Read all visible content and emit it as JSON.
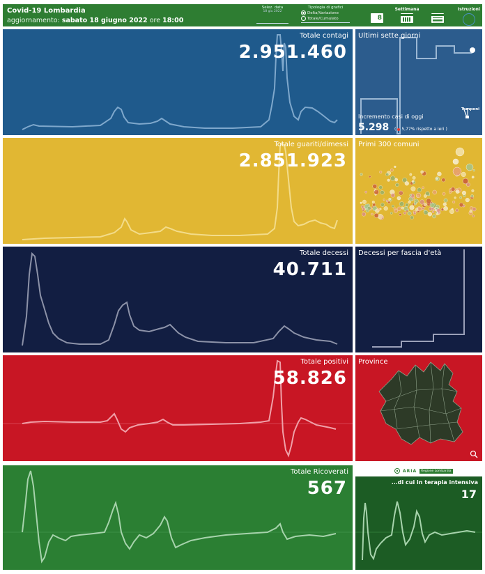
{
  "header": {
    "title": "Covid-19 Lombardia",
    "update_prefix": "aggiornamento:",
    "update_date": "sabato 18 giugno 2022",
    "update_mid": "ore",
    "update_time": "18:00",
    "date_select_label": "Selez. data",
    "date_select_value": "18 giu 2022",
    "chart_type_label": "Tipologia di grafici",
    "chart_type_options": [
      "Delta/Variazione",
      "Totale/Cumulato"
    ],
    "week_tab": "Settimana",
    "day_number": "8",
    "instructions_tab": "Istruzioni"
  },
  "panels": {
    "contagi": {
      "title": "Totale contagi",
      "value": "2.951.460"
    },
    "guariti": {
      "title": "Totale guariti/dimessi",
      "value": "2.851.923"
    },
    "decessi": {
      "title": "Totale decessi",
      "value": "40.711"
    },
    "positivi": {
      "title": "Totale positivi",
      "value": "58.826"
    },
    "ricoverati": {
      "title": "Totale Ricoverati",
      "value": "567"
    }
  },
  "side": {
    "seven_days": {
      "title": "Ultimi sette giorni",
      "increment_label": "Incremento casi di oggi",
      "increment_value": "5.298",
      "increment_note": "5,77% rispetto a ieri",
      "tamponi_label": "Tamponi"
    },
    "comuni": {
      "title": "Primi 300 comuni"
    },
    "eta": {
      "title": "Decessi per fascia d'età"
    },
    "province": {
      "title": "Province"
    },
    "intensiva": {
      "title": "...di cui in terapia intensiva",
      "value": "17"
    },
    "logos": {
      "aria": "ARIA",
      "regione": "Regione Lombardia"
    }
  },
  "colors": {
    "contagi": "#1f5a8c",
    "guariti": "#e1b733",
    "decessi": "#121e42",
    "positivi": "#c81624",
    "ricoverati": "#2b7f33",
    "header": "#2e7d32",
    "accent_red": "#e53935"
  }
}
